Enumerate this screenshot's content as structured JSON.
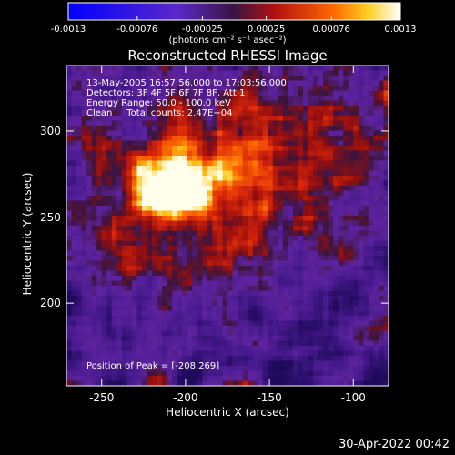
{
  "chart_data": {
    "type": "heatmap",
    "title": "Reconstructed RHESSI Image",
    "xlabel": "Heliocentric X (arcsec)",
    "ylabel": "Heliocentric Y (arcsec)",
    "xlim": [
      -271,
      -79
    ],
    "ylim": [
      152,
      338
    ],
    "x_ticks": [
      -250,
      -200,
      -150,
      -100
    ],
    "y_ticks": [
      200,
      250,
      300
    ],
    "colorbar": {
      "range": [
        -0.0013,
        0.0013
      ],
      "ticks": [
        "-0.0013",
        "-0.00076",
        "-0.00025",
        "0.00025",
        "0.00076",
        "0.0013"
      ],
      "units_text": "(photons cm⁻² s⁻¹ asec⁻²)"
    },
    "peak": {
      "x": -208,
      "y": 269
    },
    "annotations": [
      "13-May-2005 16:57:56.000 to 17:03:56.000",
      "Detectors: 3F 4F 5F 6F 7F 8F, Att 1",
      "Energy Range: 50.0 - 100.0 keV",
      "Clean     Total counts: 2.47E+04"
    ],
    "peak_label": "Position of Peak = [-208,269]",
    "grid": false
  },
  "footer": {
    "timestamp": "30-Apr-2022 00:42"
  }
}
